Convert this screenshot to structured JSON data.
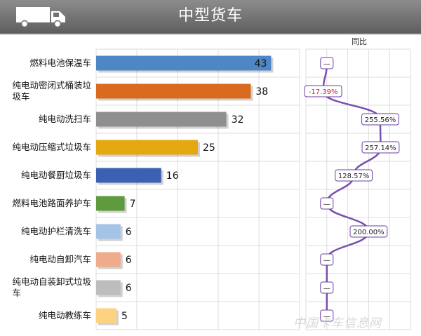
{
  "header": {
    "title": "中型货车"
  },
  "watermark": "中国卡车信息网",
  "chart_data": [
    {
      "type": "bar",
      "orientation": "horizontal",
      "categories": [
        "燃料电池保温车",
        "纯电动密闭式桶装垃圾车",
        "纯电动洗扫车",
        "纯电动压缩式垃圾车",
        "纯电动餐厨垃圾车",
        "燃料电池路面养护车",
        "纯电动护栏清洗车",
        "纯电动自卸汽车",
        "纯电动自装卸式垃圾车",
        "纯电动教练车"
      ],
      "category_labels": [
        [
          "燃料电池保温车"
        ],
        [
          "纯电动密闭式桶装垃",
          "圾车"
        ],
        [
          "纯电动洗扫车"
        ],
        [
          "纯电动压缩式垃圾车"
        ],
        [
          "纯电动餐厨垃圾车"
        ],
        [
          "燃料电池路面养护车"
        ],
        [
          "纯电动护栏清洗车"
        ],
        [
          "纯电动自卸汽车"
        ],
        [
          "纯电动自装卸式垃圾",
          "车"
        ],
        [
          "纯电动教练车"
        ]
      ],
      "values": [
        43,
        38,
        32,
        25,
        16,
        7,
        6,
        6,
        6,
        5
      ],
      "value_labels": [
        "43",
        "38",
        "32",
        "25",
        "16",
        "7",
        "6",
        "6",
        "6",
        "5"
      ],
      "colors": [
        "#4f86c6",
        "#d96b1e",
        "#8f8f8f",
        "#e4a911",
        "#3d61b2",
        "#5f9b3e",
        "#a3c4e6",
        "#f0aa8c",
        "#bdbdbd",
        "#fcd280"
      ],
      "xlim": [
        0,
        50
      ],
      "grid": true
    },
    {
      "type": "line",
      "title": "同比",
      "categories": [
        "燃料电池保温车",
        "纯电动密闭式桶装垃圾车",
        "纯电动洗扫车",
        "纯电动压缩式垃圾车",
        "纯电动餐厨垃圾车",
        "燃料电池路面养护车",
        "纯电动护栏清洗车",
        "纯电动自卸汽车",
        "纯电动自装卸式垃圾车",
        "纯电动教练车"
      ],
      "values": [
        null,
        -17.39,
        255.56,
        257.14,
        128.57,
        null,
        200.0,
        null,
        null,
        null
      ],
      "labels": [
        "—",
        "-17.39%",
        "255.56%",
        "257.14%",
        "128.57%",
        "—",
        "200.00%",
        "—",
        "—",
        "—"
      ],
      "label_colors": [
        "#222222",
        "#e0202a",
        "#222222",
        "#222222",
        "#222222",
        "#222222",
        "#222222",
        "#222222",
        "#222222",
        "#222222"
      ],
      "xlim": [
        -100,
        400
      ],
      "line_color": "#7a4fb0"
    }
  ]
}
